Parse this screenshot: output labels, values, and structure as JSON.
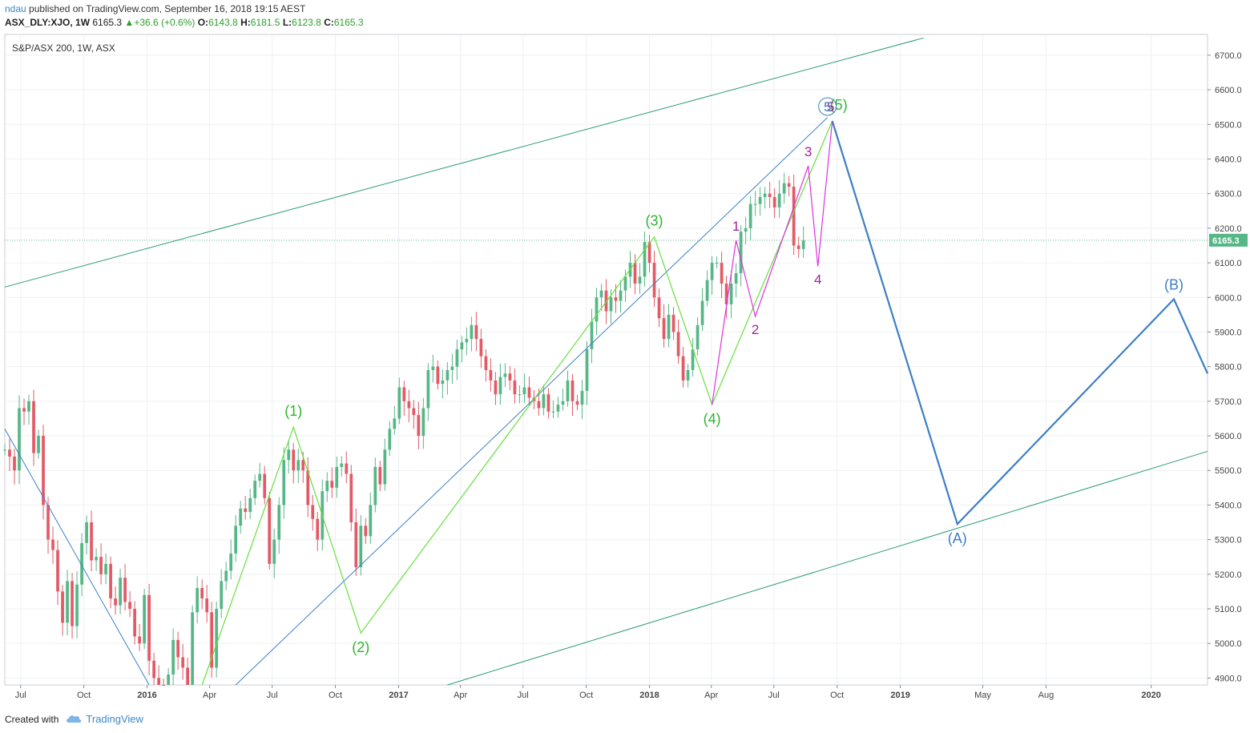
{
  "header": {
    "author": "ndau",
    "published_text": "published on TradingView.com, September 16, 2018 19:15 AEST",
    "symbol": "ASX_DLY:XJO, 1W",
    "last": "6165.3",
    "change": "+36.6 (+0.6%)",
    "open_label": "O:",
    "open": "6143.8",
    "high_label": "H:",
    "high": "6181.5",
    "low_label": "L:",
    "low": "6123.8",
    "close_label": "C:",
    "close": "6165.3"
  },
  "legend": {
    "instrument": "S&P/ASX 200, 1W, ASX"
  },
  "footer": {
    "created_with": "Created with",
    "brand": "TradingView"
  },
  "colors": {
    "up": "#56b786",
    "down": "#e35a66",
    "grid": "#eef0f3",
    "channel": "#2a9a78",
    "blue": "#3d7fc4",
    "lime": "#66e040",
    "magenta": "#e030e0",
    "green_label": "#2db52d",
    "purple_label": "#a020a0",
    "price_tag": "#56b786"
  },
  "icons": {
    "up_arrow": "triangle-up-icon",
    "logo": "tradingview-cloud-icon"
  },
  "chart_data": {
    "type": "candlestick",
    "title": "S&P/ASX 200, 1W, ASX",
    "y_axis": {
      "min": 4880,
      "max": 6760,
      "ticks": [
        4900,
        5000,
        5100,
        5200,
        5300,
        5400,
        5500,
        5600,
        5700,
        5800,
        5900,
        6000,
        6100,
        6200,
        6300,
        6400,
        6500,
        6600,
        6700
      ],
      "tick_format": "0.0"
    },
    "x_axis": {
      "range": [
        "2015-06-08",
        "2020-03-23"
      ],
      "ticks": [
        {
          "label": "Jul",
          "date": "2015-07-01"
        },
        {
          "label": "Oct",
          "date": "2015-10-01"
        },
        {
          "label": "2016",
          "date": "2016-01-01"
        },
        {
          "label": "Apr",
          "date": "2016-04-01"
        },
        {
          "label": "Jul",
          "date": "2016-07-01"
        },
        {
          "label": "Oct",
          "date": "2016-10-01"
        },
        {
          "label": "2017",
          "date": "2017-01-01"
        },
        {
          "label": "Apr",
          "date": "2017-04-01"
        },
        {
          "label": "Jul",
          "date": "2017-07-01"
        },
        {
          "label": "Oct",
          "date": "2017-10-01"
        },
        {
          "label": "2018",
          "date": "2018-01-01"
        },
        {
          "label": "Apr",
          "date": "2018-04-01"
        },
        {
          "label": "Jul",
          "date": "2018-07-01"
        },
        {
          "label": "Oct",
          "date": "2018-10-01"
        },
        {
          "label": "2019",
          "date": "2019-01-01"
        },
        {
          "label": "May",
          "date": "2019-05-01"
        },
        {
          "label": "Aug",
          "date": "2019-08-01"
        },
        {
          "label": "2020",
          "date": "2020-01-01"
        }
      ]
    },
    "last_price": {
      "value": 6165.3,
      "label": "6165.3"
    },
    "weekly_closes": [
      {
        "date": "2015-06-08",
        "closes": [
          5560,
          5540,
          5500,
          5680,
          5670,
          5700,
          5550
        ]
      },
      {
        "date": "2015-07-27",
        "closes": [
          5600,
          5400,
          5300,
          5270,
          5150,
          5060,
          5180,
          5050,
          5170,
          5290,
          5350,
          5240,
          5250,
          5200,
          5230,
          5130,
          5110,
          5190,
          5120,
          5100,
          5020,
          5000
        ]
      },
      {
        "date": "2015-12-28",
        "closes": [
          5140,
          4950,
          4900,
          4870,
          4840,
          4910,
          5010,
          4960,
          4930,
          4880,
          5090,
          5160,
          5130,
          5090,
          4930,
          5100,
          5180,
          5210,
          5260,
          5340,
          5390,
          5380,
          5420,
          5470,
          5490,
          5420
        ]
      },
      {
        "date": "2016-06-27",
        "closes": [
          5230,
          5300,
          5400,
          5530,
          5560,
          5500,
          5530,
          5500,
          5400,
          5360,
          5300,
          5440,
          5470,
          5450,
          5510,
          5520,
          5490,
          5350,
          5220,
          5340,
          5310,
          5400,
          5510,
          5460,
          5560,
          5620,
          5650,
          5740,
          5700,
          5680,
          5660,
          5600,
          5680,
          5790,
          5800
        ]
      },
      {
        "date": "2017-02-27",
        "closes": [
          5750,
          5760,
          5790,
          5800,
          5850,
          5870,
          5880,
          5920,
          5880,
          5830,
          5790,
          5760,
          5720,
          5770,
          5780,
          5760,
          5720,
          5720,
          5740,
          5710,
          5700,
          5680,
          5720,
          5670,
          5670,
          5690,
          5700,
          5760,
          5700
        ]
      },
      {
        "date": "2017-09-18",
        "closes": [
          5690,
          5730,
          5850,
          5930,
          6000,
          6020,
          5960,
          6000,
          5990,
          6020,
          6060,
          6100,
          6040,
          6060,
          6160,
          6100,
          6000,
          5940,
          5880,
          5950,
          5900,
          5830,
          5760,
          5790,
          5850,
          5920,
          5990,
          6050,
          6100
        ]
      },
      {
        "date": "2018-04-09",
        "closes": [
          6100,
          6040,
          5980,
          6040,
          6070,
          6190,
          6200,
          6270,
          6270,
          6290,
          6300,
          6290,
          6260,
          6300,
          6330,
          6320,
          6150,
          6140,
          6165.3
        ]
      }
    ],
    "annotations": {
      "primary_wave": [
        {
          "label": "(1)",
          "date": "2016-08-01",
          "price": 5625
        },
        {
          "label": "(2)",
          "date": "2016-11-07",
          "price": 5030
        },
        {
          "label": "(3)",
          "date": "2018-01-08",
          "price": 6175
        },
        {
          "label": "(4)",
          "date": "2018-04-02",
          "price": 5690
        },
        {
          "label": "(5)",
          "date": "2018-09-24",
          "price": 6510
        }
      ],
      "minor_wave": [
        {
          "label": "1",
          "date": "2018-05-07",
          "price": 6165
        },
        {
          "label": "2",
          "date": "2018-06-04",
          "price": 5945
        },
        {
          "label": "3",
          "date": "2018-08-20",
          "price": 6380
        },
        {
          "label": "4",
          "date": "2018-09-03",
          "price": 6090
        },
        {
          "label": "5",
          "date": "2018-09-24",
          "price": 6510
        }
      ],
      "corrective_wave": [
        {
          "label": "(A)",
          "date": "2019-03-25",
          "price": 5345
        },
        {
          "label": "(B)",
          "date": "2020-02-03",
          "price": 5995
        }
      ],
      "circled_label": "5",
      "channel_lines": [
        {
          "from": {
            "date": "2015-06-08",
            "price": 6030
          },
          "to": {
            "date": "2019-02-04",
            "price": 6750
          }
        },
        {
          "from": {
            "date": "2017-03-13",
            "price": 4880
          },
          "to": {
            "date": "2020-03-23",
            "price": 5555
          }
        }
      ],
      "trend_line": {
        "from": {
          "date": "2016-05-09",
          "price": 4880
        },
        "to": {
          "date": "2018-09-17",
          "price": 6520
        }
      },
      "down_line": {
        "from": {
          "date": "2015-06-08",
          "price": 5620
        },
        "to": {
          "date": "2016-01-04",
          "price": 4880
        }
      }
    }
  }
}
